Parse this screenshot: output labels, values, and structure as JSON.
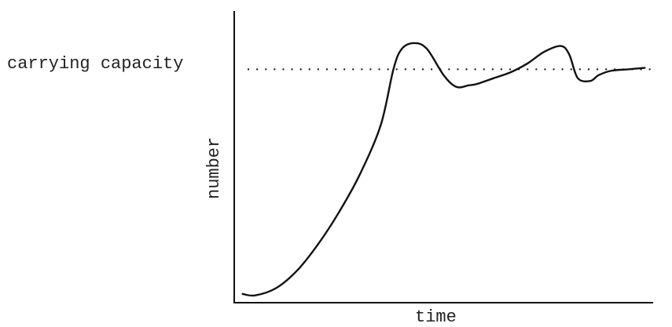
{
  "chart_data": {
    "type": "line",
    "title": "",
    "xlabel": "time",
    "ylabel": "number",
    "xlim": [
      0,
      100
    ],
    "ylim": [
      0,
      100
    ],
    "grid": false,
    "reference_line": {
      "label": "carrying capacity",
      "y": 80,
      "style": "dotted"
    },
    "series": [
      {
        "x": [
          2,
          5,
          10,
          15,
          20,
          25,
          30,
          35,
          38,
          40,
          43,
          46,
          50,
          53,
          56,
          58,
          62,
          66,
          70,
          74,
          78,
          80,
          82,
          85,
          87,
          90,
          94,
          98
        ],
        "y": [
          3,
          2.5,
          5,
          11,
          20,
          31,
          44,
          61,
          80,
          87,
          89,
          87,
          78,
          74,
          74.5,
          75,
          77,
          79,
          82,
          86,
          88,
          85,
          77,
          76,
          78,
          79.5,
          80,
          80.5
        ]
      }
    ]
  },
  "colors": {
    "line": "#111111",
    "text": "#222222",
    "background": "#ffffff"
  }
}
